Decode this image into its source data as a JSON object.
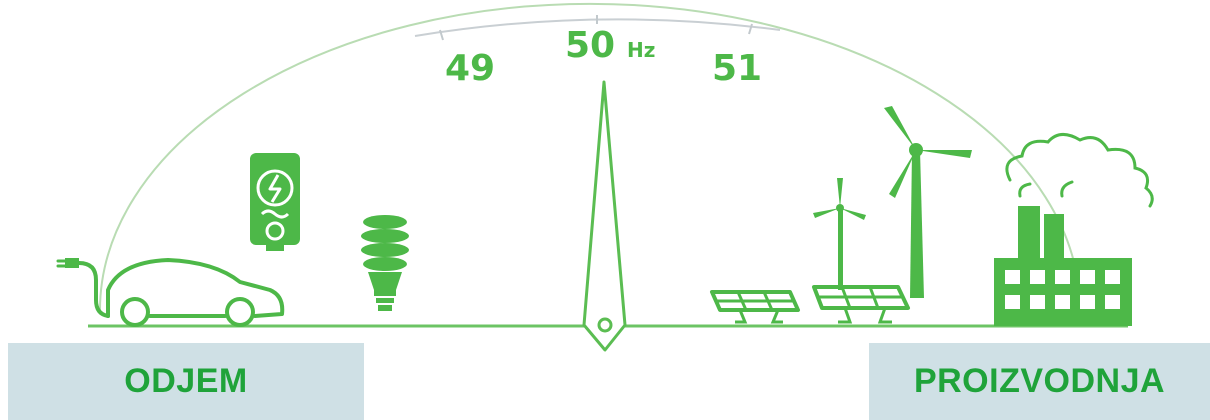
{
  "gauge": {
    "tick_left": "49",
    "tick_center": "50",
    "unit": "Hz",
    "tick_right": "51"
  },
  "labels": {
    "consumption": "ODJEM",
    "production": "PROIZVODNJA"
  },
  "colors": {
    "primary_green": "#4db848",
    "label_green": "#1fa33a",
    "label_background": "#cfe0e5"
  },
  "icons": {
    "consumption": [
      "electric-car-icon",
      "water-heater-icon",
      "light-bulb-icon"
    ],
    "production": [
      "solar-panel-icon",
      "wind-turbine-icon",
      "factory-icon"
    ]
  }
}
